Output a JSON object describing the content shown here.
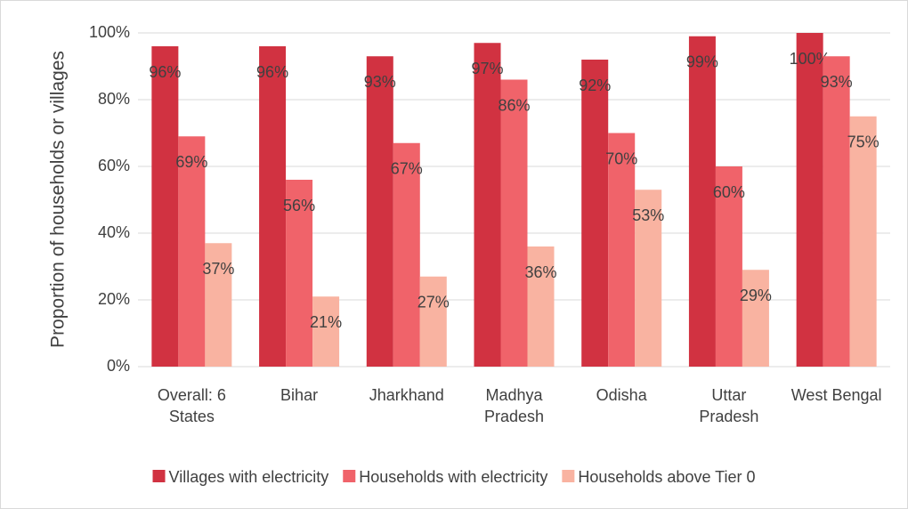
{
  "chart_data": {
    "type": "bar",
    "y_label": "Proportion of households or villages",
    "categories": [
      "Overall: 6 States",
      "Bihar",
      "Jharkhand",
      "Madhya Pradesh",
      "Odisha",
      "Uttar Pradesh",
      "West Bengal"
    ],
    "series": [
      {
        "name": "Villages with electricity",
        "color": "#d13241",
        "values": [
          96,
          96,
          93,
          97,
          92,
          99,
          100
        ],
        "value_labels": [
          "96%",
          "96%",
          "93%",
          "97%",
          "92%",
          "99%",
          "100%"
        ]
      },
      {
        "name": "Households with electricity",
        "color": "#f0636a",
        "values": [
          69,
          56,
          67,
          86,
          70,
          60,
          93
        ],
        "value_labels": [
          "69%",
          "56%",
          "67%",
          "86%",
          "70%",
          "60%",
          "93%"
        ]
      },
      {
        "name": "Households above Tier 0",
        "color": "#f9b3a1",
        "values": [
          37,
          21,
          27,
          36,
          53,
          29,
          75
        ],
        "value_labels": [
          "37%",
          "21%",
          "27%",
          "36%",
          "53%",
          "29%",
          "75%"
        ]
      }
    ],
    "ylim": [
      0,
      100
    ],
    "yticks": [
      {
        "value": 0,
        "label": "0%"
      },
      {
        "value": 20,
        "label": "20%"
      },
      {
        "value": 40,
        "label": "40%"
      },
      {
        "value": 60,
        "label": "60%"
      },
      {
        "value": 80,
        "label": "80%"
      },
      {
        "value": 100,
        "label": "100%"
      }
    ],
    "grid": true,
    "legend": "bottom"
  }
}
